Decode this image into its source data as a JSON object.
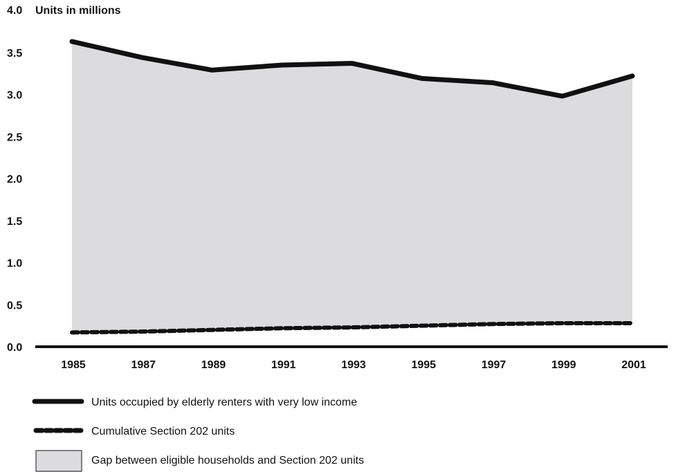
{
  "chart_data": {
    "type": "line",
    "title": "",
    "ylabel": "Units in millions",
    "xlabel": "",
    "x": [
      1985,
      1987,
      1989,
      1991,
      1993,
      1995,
      1997,
      1999,
      2001
    ],
    "x_tick_labels": [
      "1985",
      "1987",
      "1989",
      "1991",
      "1993",
      "1995",
      "1997",
      "1999",
      "2001"
    ],
    "y_tick_labels": [
      "0.0",
      "0.5",
      "1.0",
      "1.5",
      "2.0",
      "2.5",
      "3.0",
      "3.5",
      "4.0"
    ],
    "ylim": [
      0,
      4.0
    ],
    "grid": false,
    "legend_position": "bottom-left",
    "series": [
      {
        "name": "Units occupied by elderly renters with very low income",
        "style": "solid",
        "color": "#111111",
        "values": [
          3.63,
          3.44,
          3.29,
          3.35,
          3.37,
          3.19,
          3.14,
          2.98,
          3.22
        ]
      },
      {
        "name": "Cumulative Section 202 units",
        "style": "dashed",
        "color": "#111111",
        "values": [
          0.17,
          0.18,
          0.2,
          0.22,
          0.23,
          0.25,
          0.27,
          0.28,
          0.28
        ]
      }
    ],
    "area": {
      "name": "Gap between eligible households and Section 202 units",
      "color": "#dcdcde"
    }
  }
}
